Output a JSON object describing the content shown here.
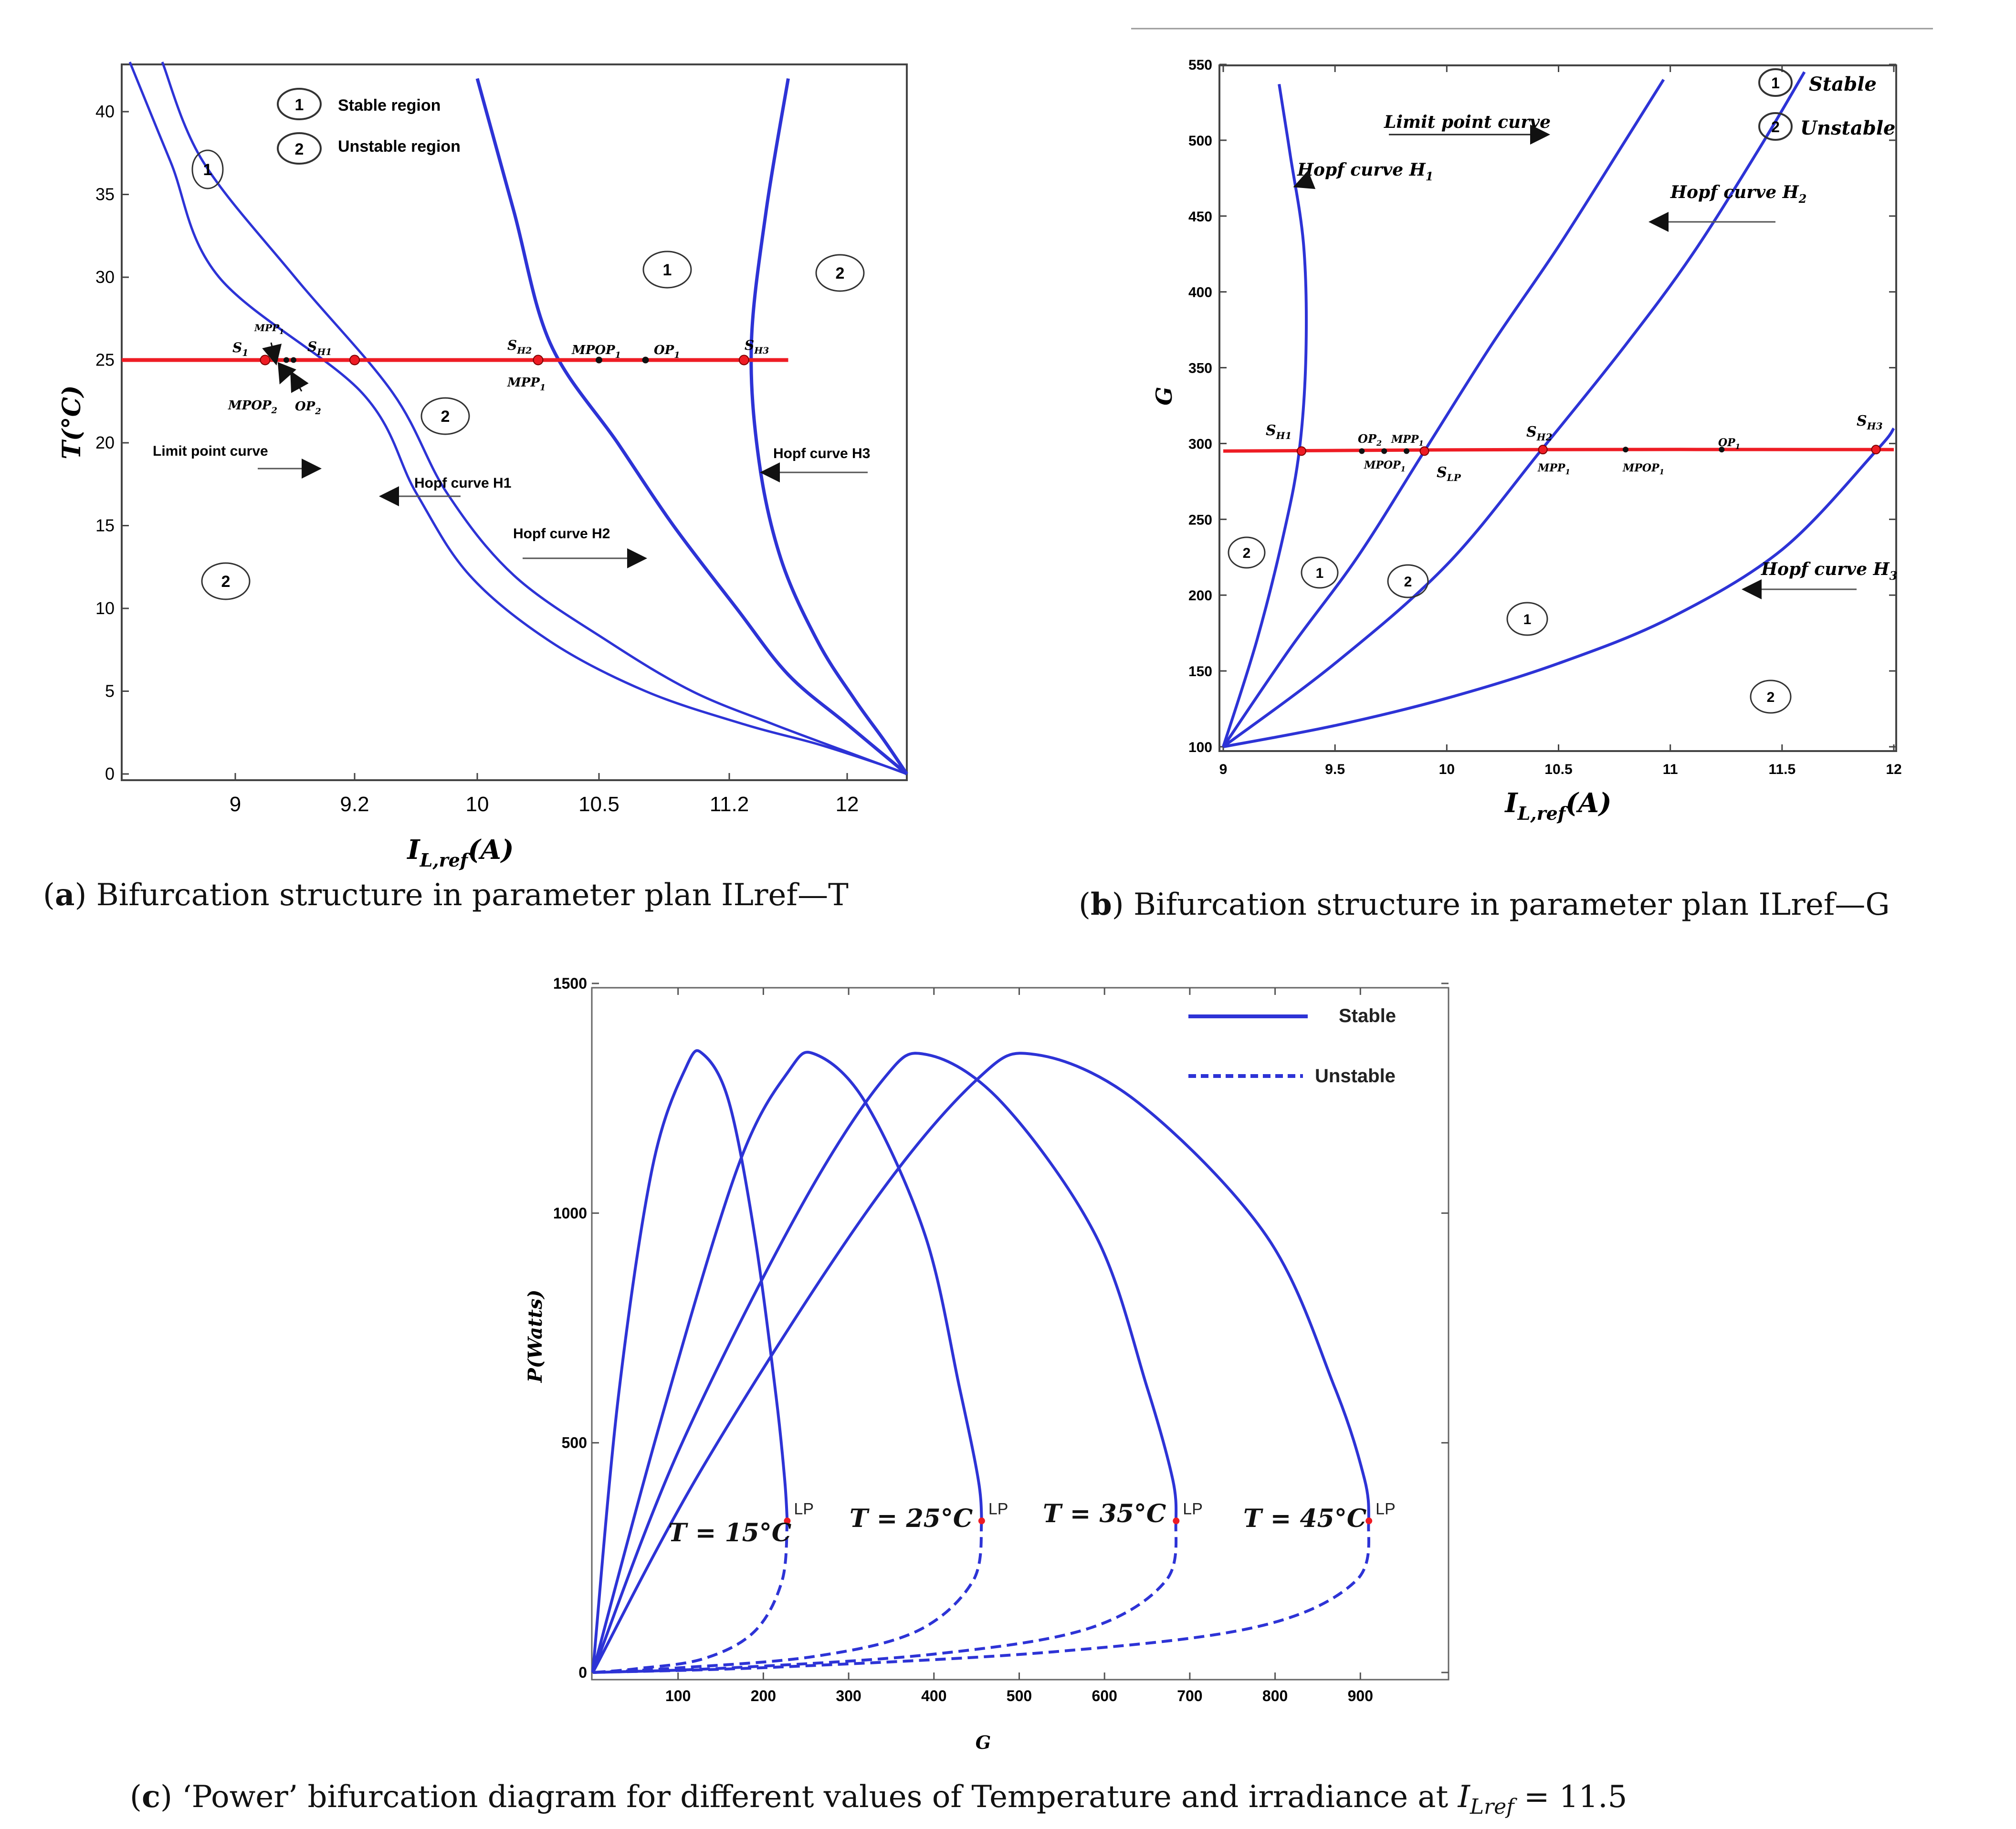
{
  "colors": {
    "curve": "#2d33d6",
    "op_line": "#ee1c24",
    "point": "#111111"
  },
  "panel_a": {
    "caption_letter": "a",
    "caption_text": "Bifurcation structure in parameter plan ILref—T",
    "xlabel_main": "I",
    "xlabel_sub": "L,ref",
    "xlabel_tail": "(A)",
    "ylabel": "T(°C)",
    "xticks": [
      "9",
      "9.2",
      "10",
      "10.5",
      "11.2",
      "12"
    ],
    "yticks": [
      "0",
      "5",
      "10",
      "15",
      "20",
      "25",
      "30",
      "35",
      "40"
    ],
    "legend": {
      "stable": "Stable region",
      "unstable": "Unstable region",
      "n1": "1",
      "n2": "2"
    },
    "region_labels": [
      "1",
      "2",
      "2",
      "1",
      "2"
    ],
    "curve_labels": {
      "limit": "Limit point curve",
      "h1": "Hopf curve H1",
      "h2": "Hopf curve H2",
      "h3": "Hopf curve H3"
    },
    "points": {
      "s1": "S",
      "s1_sub": "1",
      "sh1": "S",
      "sh1_sub": "H1",
      "sh2": "S",
      "sh2_sub": "H2",
      "sh3": "S",
      "sh3_sub": "H3",
      "mpp1a": "MPP",
      "mpp1a_sub": "1",
      "mpop2": "MPOP",
      "mpop2_sub": "2",
      "op2": "OP",
      "op2_sub": "2",
      "mpp1b": "MPP",
      "mpp1b_sub": "1",
      "mpop1": "MPOP",
      "mpop1_sub": "1",
      "op1": "OP",
      "op1_sub": "1"
    }
  },
  "panel_b": {
    "caption_letter": "b",
    "caption_text": "Bifurcation structure in parameter plan ILref—G",
    "xlabel_main": "I",
    "xlabel_sub": "L,ref",
    "xlabel_tail": "(A)",
    "ylabel": "G",
    "xticks": [
      "9",
      "9.5",
      "10",
      "10.5",
      "11",
      "11.5",
      "12"
    ],
    "yticks": [
      "100",
      "150",
      "200",
      "250",
      "300",
      "350",
      "400",
      "450",
      "500",
      "550"
    ],
    "legend": {
      "stable": "Stable",
      "unstable": "Unstable",
      "n1": "1",
      "n2": "2"
    },
    "region_labels": [
      "2",
      "1",
      "2",
      "1",
      "2"
    ],
    "curve_labels": {
      "limit": "Limit point curve",
      "h1": "Hopf curve H",
      "h1_sub": "1",
      "h2": "Hopf curve H",
      "h2_sub": "2",
      "h3": "Hopf curve H",
      "h3_sub": "3"
    },
    "points": {
      "sh1": "S",
      "sh1_sub": "H1",
      "op2": "OP",
      "op2_sub": "2",
      "mpp1": "MPP",
      "mpp1_sub": "1",
      "mpop2": "MPOP",
      "mpop2_sub": "1",
      "slp": "S",
      "slp_sub": "LP",
      "sh2": "S",
      "sh2_sub": "H2",
      "mpp1b": "MPP",
      "mpp1b_sub": "1",
      "mpop1": "MPOP",
      "mpop1_sub": "1",
      "op1": "OP",
      "op1_sub": "1",
      "sh3": "S",
      "sh3_sub": "H3"
    }
  },
  "panel_c": {
    "caption_letter": "c",
    "caption_text": "‘Power’ bifurcation diagram for different values of Temperature and irradiance at ",
    "caption_var": "I",
    "caption_sub": "Lref",
    "caption_tail": " = 11.5",
    "xlabel": "G",
    "ylabel": "P(Watts)",
    "legend": {
      "stable": "Stable",
      "unstable": "Unstable"
    },
    "lp_label": "LP",
    "temp_labels": [
      "T = 15°C",
      "T = 25°C",
      "T = 35°C",
      "T = 45°C"
    ]
  },
  "chart_data": [
    {
      "type": "line",
      "title": "Bifurcation structure in parameter plan ILref—T",
      "xlabel": "I_L,ref (A)",
      "ylabel": "T(°C)",
      "x_ticks": [
        9,
        9.2,
        10,
        10.5,
        11.2,
        12
      ],
      "ylim": [
        0,
        43
      ],
      "series": [
        {
          "name": "Limit point curve",
          "style": "solid",
          "x": [
            8.35,
            8.6,
            8.9,
            9.25,
            9.6,
            9.95,
            10.3,
            10.75,
            11.3,
            11.8,
            12.25,
            12.4
          ],
          "y": [
            43,
            37,
            30,
            23,
            17,
            12,
            8,
            5,
            3,
            1.8,
            0.5,
            0
          ]
        },
        {
          "name": "Hopf curve H1",
          "style": "solid",
          "x": [
            8.55,
            8.8,
            9.1,
            9.45,
            9.8,
            10.15,
            10.55,
            11.0,
            11.5,
            11.95,
            12.4
          ],
          "y": [
            43,
            37,
            30,
            23,
            17,
            12,
            8,
            5,
            3,
            1.5,
            0
          ]
        },
        {
          "name": "Hopf curve H2",
          "style": "solid",
          "x": [
            10.0,
            10.15,
            10.3,
            10.6,
            10.9,
            11.25,
            11.6,
            12.0,
            12.4
          ],
          "y": [
            42,
            34,
            26,
            20,
            15,
            10,
            6,
            3,
            0
          ]
        },
        {
          "name": "Hopf curve H3",
          "style": "solid",
          "x": [
            11.6,
            11.45,
            11.35,
            11.4,
            11.55,
            11.8,
            12.05,
            12.25,
            12.4
          ],
          "y": [
            42,
            34,
            26,
            19,
            13,
            8,
            4.5,
            2,
            0
          ]
        },
        {
          "name": "Operating line T=25°C",
          "style": "solid",
          "x": [
            8.3,
            11.6
          ],
          "y": [
            25,
            25
          ]
        }
      ],
      "points": [
        {
          "label": "S1",
          "x": 9.05,
          "y": 25
        },
        {
          "label": "SH1",
          "x": 9.2,
          "y": 25
        },
        {
          "label": "SH2",
          "x": 10.25,
          "y": 25
        },
        {
          "label": "MPOP1",
          "x": 10.5,
          "y": 25
        },
        {
          "label": "OP1",
          "x": 10.75,
          "y": 25
        },
        {
          "label": "SH3",
          "x": 11.3,
          "y": 25
        }
      ]
    },
    {
      "type": "line",
      "title": "Bifurcation structure in parameter plan ILref—G",
      "xlabel": "I_L,ref (A)",
      "ylabel": "G",
      "xlim": [
        9,
        12
      ],
      "ylim": [
        100,
        550
      ],
      "series": [
        {
          "name": "Hopf curve H1",
          "style": "solid",
          "x": [
            9,
            9.15,
            9.27,
            9.34,
            9.37,
            9.36,
            9.3,
            9.25
          ],
          "y": [
            100,
            170,
            240,
            295,
            360,
            430,
            490,
            537
          ]
        },
        {
          "name": "Limit point curve",
          "style": "solid",
          "x": [
            9,
            9.3,
            9.6,
            9.9,
            10.2,
            10.5,
            10.8,
            10.97
          ],
          "y": [
            100,
            165,
            225,
            295,
            365,
            430,
            500,
            540
          ]
        },
        {
          "name": "Hopf curve H2",
          "style": "solid",
          "x": [
            9,
            9.5,
            10.0,
            10.43,
            10.8,
            11.1,
            11.4,
            11.6
          ],
          "y": [
            100,
            155,
            220,
            297,
            365,
            425,
            495,
            545
          ]
        },
        {
          "name": "Hopf curve H3",
          "style": "solid",
          "x": [
            9,
            9.5,
            10.0,
            10.5,
            11.0,
            11.5,
            11.92,
            12.0
          ],
          "y": [
            100,
            114,
            132,
            155,
            185,
            230,
            295,
            310
          ]
        },
        {
          "name": "Operating line",
          "style": "solid",
          "x": [
            9,
            10.4,
            12
          ],
          "y": [
            295,
            296,
            296
          ]
        }
      ],
      "points": [
        {
          "label": "SH1",
          "x": 9.35,
          "y": 295
        },
        {
          "label": "OP2",
          "x": 9.62,
          "y": 295
        },
        {
          "label": "MPOP1",
          "x": 9.72,
          "y": 295
        },
        {
          "label": "MPP1",
          "x": 9.82,
          "y": 295
        },
        {
          "label": "SLP",
          "x": 9.9,
          "y": 295
        },
        {
          "label": "SH2",
          "x": 10.43,
          "y": 296
        },
        {
          "label": "MPOP1",
          "x": 10.8,
          "y": 296
        },
        {
          "label": "OP1",
          "x": 11.23,
          "y": 296
        },
        {
          "label": "SH3",
          "x": 11.92,
          "y": 296
        }
      ]
    },
    {
      "type": "line",
      "title": "‘Power’ bifurcation diagram for different values of Temperature and irradiance at I_Lref = 11.5",
      "xlabel": "G",
      "ylabel": "P(Watts)",
      "xlim": [
        0,
        990
      ],
      "ylim": [
        0,
        1500
      ],
      "x_ticks": [
        100,
        200,
        300,
        400,
        500,
        600,
        700,
        800,
        900
      ],
      "y_ticks": [
        0,
        500,
        1000,
        1500
      ],
      "series": [
        {
          "name": "T = 15°C stable",
          "style": "solid",
          "x": [
            0,
            30,
            70,
            110,
            130,
            160,
            190,
            215,
            225,
            228
          ],
          "y": [
            0,
            600,
            1100,
            1320,
            1345,
            1240,
            950,
            600,
            420,
            330
          ]
        },
        {
          "name": "T = 15°C unstable",
          "style": "dashed",
          "x": [
            228,
            222,
            190,
            130,
            50,
            0
          ],
          "y": [
            330,
            200,
            90,
            30,
            8,
            0
          ]
        },
        {
          "name": "T = 25°C stable",
          "style": "solid",
          "x": [
            0,
            80,
            170,
            230,
            262,
            320,
            390,
            430,
            452,
            456
          ],
          "y": [
            0,
            550,
            1100,
            1310,
            1345,
            1240,
            950,
            620,
            420,
            330
          ]
        },
        {
          "name": "T = 25°C unstable",
          "style": "dashed",
          "x": [
            456,
            446,
            380,
            260,
            100,
            0
          ],
          "y": [
            330,
            200,
            90,
            35,
            10,
            0
          ]
        },
        {
          "name": "T = 35°C stable",
          "style": "solid",
          "x": [
            0,
            100,
            240,
            340,
            392,
            480,
            590,
            650,
            680,
            684
          ],
          "y": [
            0,
            480,
            1000,
            1290,
            1345,
            1240,
            950,
            620,
            420,
            330
          ]
        },
        {
          "name": "T = 35°C unstable",
          "style": "dashed",
          "x": [
            684,
            672,
            580,
            400,
            160,
            0
          ],
          "y": [
            330,
            200,
            95,
            40,
            10,
            0
          ]
        },
        {
          "name": "T = 45°C stable",
          "style": "solid",
          "x": [
            0,
            130,
            320,
            450,
            520,
            640,
            790,
            870,
            905,
            910
          ],
          "y": [
            0,
            450,
            1000,
            1290,
            1345,
            1240,
            950,
            620,
            420,
            330
          ]
        },
        {
          "name": "T = 45°C unstable",
          "style": "dashed",
          "x": [
            910,
            895,
            780,
            540,
            220,
            0
          ],
          "y": [
            330,
            200,
            100,
            45,
            12,
            0
          ]
        }
      ],
      "points": [
        {
          "label": "LP",
          "x": 228,
          "y": 330
        },
        {
          "label": "LP",
          "x": 456,
          "y": 330
        },
        {
          "label": "LP",
          "x": 684,
          "y": 330
        },
        {
          "label": "LP",
          "x": 910,
          "y": 330
        }
      ]
    }
  ]
}
